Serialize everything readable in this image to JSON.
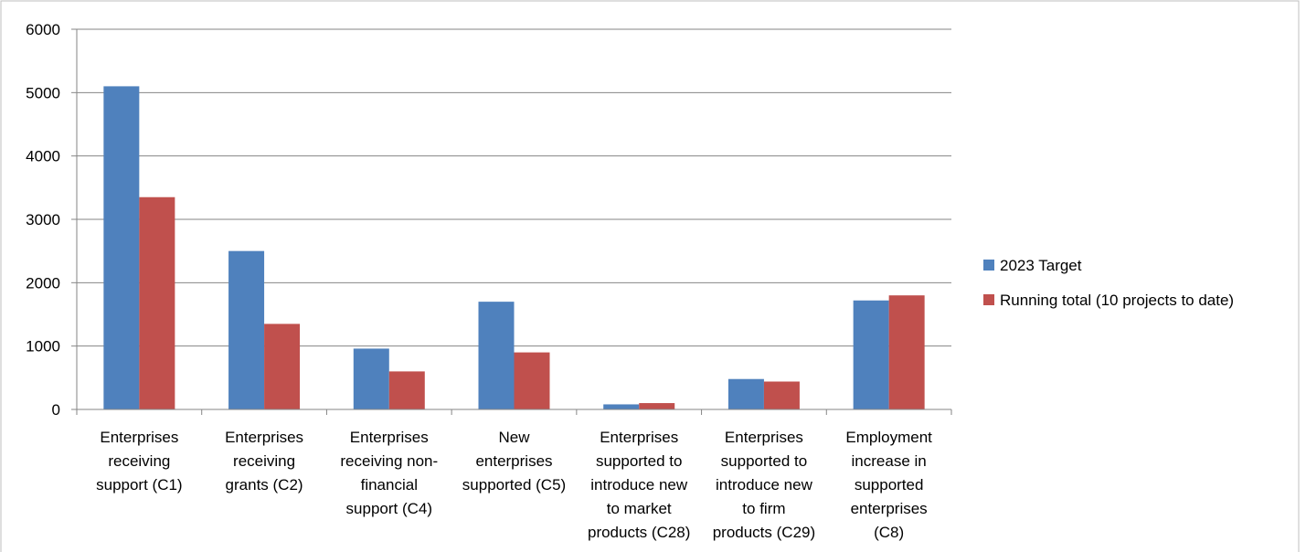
{
  "chart_data": {
    "type": "bar",
    "categories": [
      [
        "Enterprises",
        "receiving",
        "support (C1)"
      ],
      [
        "Enterprises",
        "receiving",
        "grants (C2)"
      ],
      [
        "Enterprises",
        "receiving non-",
        "financial",
        "support (C4)"
      ],
      [
        "New",
        "enterprises",
        "supported (C5)"
      ],
      [
        "Enterprises",
        "supported to",
        "introduce new",
        "to market",
        "products (C28)"
      ],
      [
        "Enterprises",
        "supported to",
        "introduce new",
        "to firm",
        "products (C29)"
      ],
      [
        "Employment",
        "increase in",
        "supported",
        "enterprises",
        "(C8)"
      ]
    ],
    "series": [
      {
        "name": "2023 Target",
        "color": "#4f81bd",
        "values": [
          5100,
          2500,
          960,
          1700,
          80,
          480,
          1720
        ]
      },
      {
        "name": "Running total (10 projects to date)",
        "color": "#c0504d",
        "values": [
          3350,
          1350,
          600,
          900,
          100,
          440,
          1800
        ]
      }
    ],
    "yticks": [
      "0",
      "1000",
      "2000",
      "3000",
      "4000",
      "5000",
      "6000"
    ],
    "ylim": [
      0,
      6000
    ],
    "grid": true,
    "legend_position": "right",
    "title": "",
    "xlabel": "",
    "ylabel": ""
  }
}
